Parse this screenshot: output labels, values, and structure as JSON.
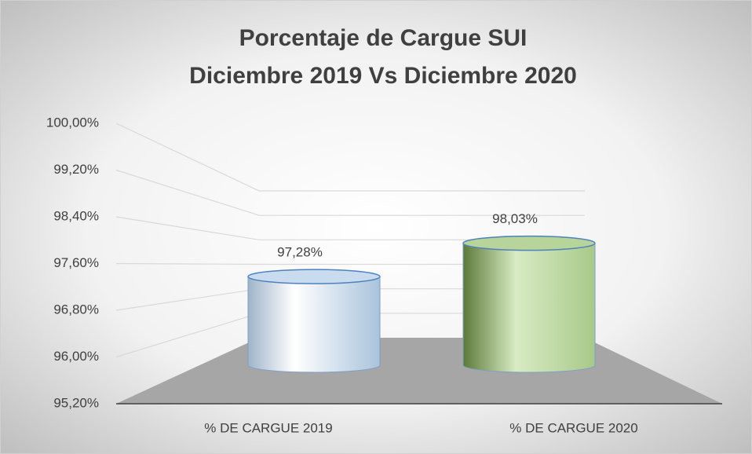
{
  "chart_data": {
    "type": "cylinder",
    "title": [
      "Porcentaje de Cargue SUI",
      "Diciembre 2019 Vs Diciembre 2020"
    ],
    "categories": [
      "% DE CARGUE 2019",
      "% DE CARGUE 2020"
    ],
    "values": [
      97.28,
      98.03
    ],
    "value_labels": [
      "97,28%",
      "98,03%"
    ],
    "colors": [
      "#c9dcef",
      "#b7d49a"
    ],
    "ylim": [
      95.2,
      100
    ],
    "yticks": [
      {
        "value": 95.2,
        "label": "95,20%"
      },
      {
        "value": 96.0,
        "label": "96,00%"
      },
      {
        "value": 96.8,
        "label": "96,80%"
      },
      {
        "value": 97.6,
        "label": "97,60%"
      },
      {
        "value": 98.4,
        "label": "98,40%"
      },
      {
        "value": 99.2,
        "label": "99,20%"
      },
      {
        "value": 100,
        "label": "100,00%"
      }
    ],
    "grid": true
  }
}
